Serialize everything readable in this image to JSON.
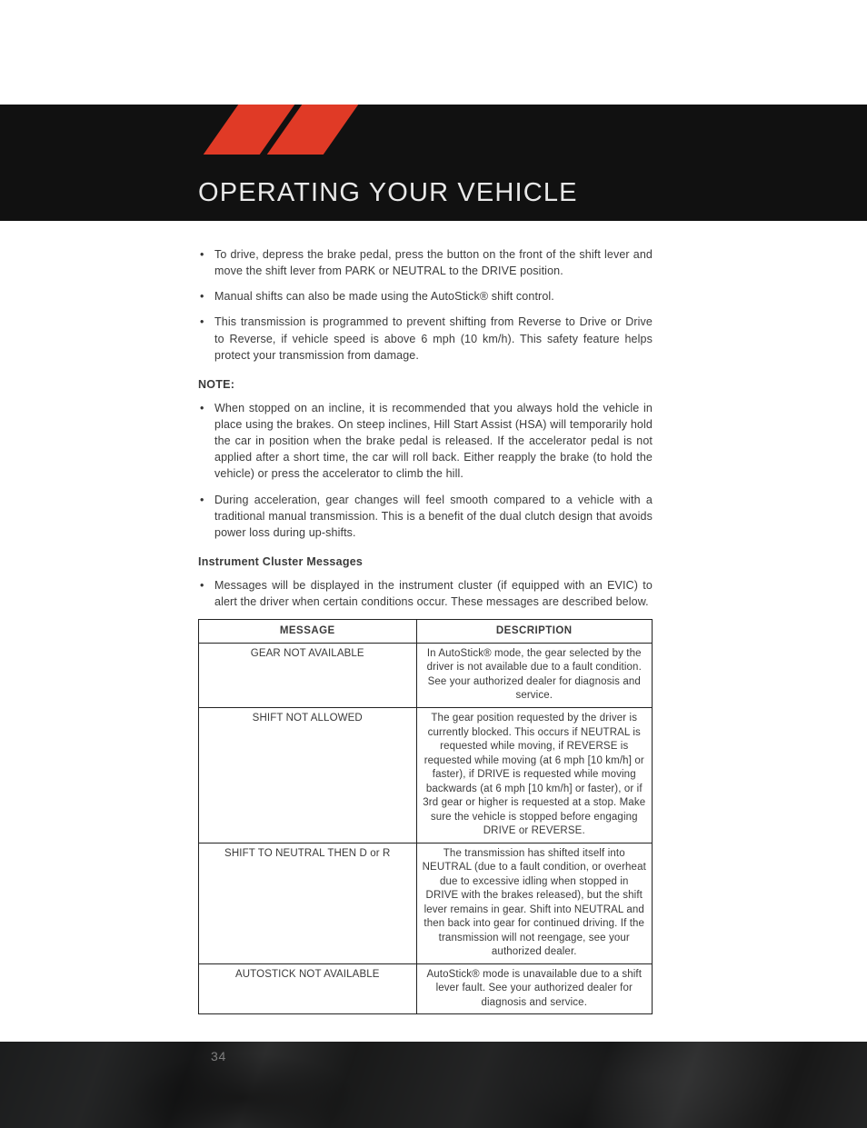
{
  "header": {
    "title": "OPERATING YOUR VEHICLE",
    "stripe_color": "#e03a26",
    "bar_color": "#111111"
  },
  "intro_bullets": [
    "To drive, depress the brake pedal, press the button on the front of the shift lever and move the shift lever from PARK or NEUTRAL to the DRIVE position.",
    "Manual shifts can also be made using the AutoStick® shift control.",
    "This transmission is programmed to prevent shifting from Reverse to Drive or Drive to Reverse, if vehicle speed is above 6 mph (10 km/h). This safety feature helps protect your transmission from damage."
  ],
  "note_label": "NOTE:",
  "note_bullets": [
    "When stopped on an incline, it is recommended that you always hold the vehicle in place using the brakes. On steep inclines, Hill Start Assist (HSA) will temporarily hold the car in position when the brake pedal is released. If the accelerator pedal is not applied after a short time, the car will roll back. Either reapply the brake (to hold the vehicle) or press the accelerator to climb the hill.",
    "During acceleration, gear changes will feel smooth compared to a vehicle with a traditional manual transmission. This is a benefit of the dual clutch design that avoids power loss during up-shifts."
  ],
  "cluster_heading": "Instrument Cluster Messages",
  "cluster_intro": "Messages will be displayed in the instrument cluster (if equipped with an EVIC) to alert the driver when certain conditions occur. These messages are described below.",
  "table": {
    "headers": {
      "message": "MESSAGE",
      "description": "DESCRIPTION"
    },
    "rows": [
      {
        "message": "GEAR NOT AVAILABLE",
        "description": "In AutoStick® mode, the gear selected by the driver is not available due to a fault condition. See your authorized dealer for diagnosis and service."
      },
      {
        "message": "SHIFT NOT ALLOWED",
        "description": "The gear position requested by the driver is currently blocked. This occurs if NEUTRAL is requested while moving, if REVERSE is requested while moving (at 6 mph [10 km/h] or faster), if DRIVE is requested while moving backwards (at 6 mph [10 km/h] or faster), or if 3rd gear or higher is requested at a stop. Make sure the vehicle is stopped before engaging DRIVE or REVERSE."
      },
      {
        "message": "SHIFT TO NEUTRAL THEN D or R",
        "description": "The transmission has shifted itself into NEUTRAL (due to a fault condition, or overheat due to excessive idling when stopped in DRIVE with the brakes released), but the shift lever remains in gear. Shift into NEUTRAL and then back into gear for continued driving. If the transmission will not reengage, see your authorized dealer."
      },
      {
        "message": "AUTOSTICK NOT AVAILABLE",
        "description": "AutoStick® mode is unavailable due to a shift lever fault. See your authorized dealer for diagnosis and service."
      }
    ]
  },
  "page_number": "34"
}
